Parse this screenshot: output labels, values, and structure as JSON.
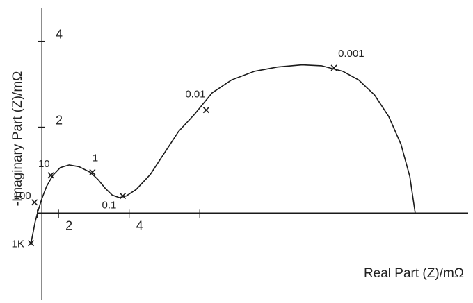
{
  "chart_data": {
    "type": "line",
    "xlabel": "Real Part (Z)/mΩ",
    "ylabel": "-Imaginary Part (Z)/mΩ",
    "xlim": [
      0.5,
      13.6
    ],
    "ylim": [
      -1.9,
      4.8
    ],
    "x_ticks": [
      1.4,
      2,
      4,
      6
    ],
    "x_tick_labels": [
      {
        "value": 2,
        "text": "2"
      },
      {
        "value": 4,
        "text": "4"
      }
    ],
    "y_ticks": [
      2,
      4
    ],
    "y_tick_labels": [
      {
        "value": 2,
        "text": "2"
      },
      {
        "value": 4,
        "text": "4"
      }
    ],
    "grid": false,
    "series": [
      {
        "x": [
          1.22,
          1.28,
          1.34,
          1.42,
          1.52,
          1.66,
          1.84,
          2.05,
          2.3,
          2.58,
          2.9,
          3.12,
          3.32,
          3.52,
          3.72,
          3.92,
          4.2,
          4.6,
          5.0,
          5.4,
          5.85,
          6.35,
          6.9,
          7.55,
          8.2,
          8.9,
          9.45,
          10.05,
          10.5,
          10.95,
          11.35,
          11.7,
          11.95,
          12.1
        ],
        "y": [
          -0.7,
          -0.45,
          -0.2,
          0.05,
          0.32,
          0.62,
          0.88,
          1.06,
          1.12,
          1.08,
          0.95,
          0.78,
          0.58,
          0.42,
          0.36,
          0.4,
          0.55,
          0.9,
          1.4,
          1.9,
          2.3,
          2.8,
          3.1,
          3.3,
          3.4,
          3.45,
          3.43,
          3.3,
          3.1,
          2.75,
          2.25,
          1.6,
          0.85,
          0.0
        ]
      }
    ],
    "markers": [
      {
        "label": "1K",
        "x": 1.22,
        "y": -0.7
      },
      {
        "label": "100",
        "x": 1.32,
        "y": 0.25
      },
      {
        "label": "10",
        "x": 1.78,
        "y": 0.88
      },
      {
        "label": "1",
        "x": 2.96,
        "y": 0.95
      },
      {
        "label": "0.1",
        "x": 3.82,
        "y": 0.4
      },
      {
        "label": "0.01",
        "x": 6.18,
        "y": 2.4
      },
      {
        "label": "0.001",
        "x": 9.8,
        "y": 3.38
      }
    ]
  }
}
